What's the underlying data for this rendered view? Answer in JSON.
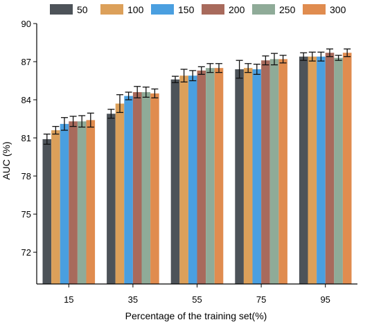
{
  "chart_data": {
    "type": "bar",
    "xlabel": "Percentage of the training set(%)",
    "ylabel": "AUC (%)",
    "ylim": [
      69.5,
      90
    ],
    "yticks": [
      72,
      75,
      78,
      81,
      84,
      87,
      90
    ],
    "grid": false,
    "legend_position": "top",
    "categories": [
      "15",
      "35",
      "55",
      "75",
      "95"
    ],
    "series": [
      {
        "name": "50",
        "color": "#4d5359",
        "values": [
          80.9,
          82.9,
          85.6,
          86.4,
          87.4
        ],
        "errors": [
          0.4,
          0.35,
          0.25,
          0.7,
          0.3
        ]
      },
      {
        "name": "100",
        "color": "#dca05a",
        "values": [
          81.6,
          83.7,
          85.9,
          86.5,
          87.4
        ],
        "errors": [
          0.3,
          0.7,
          0.5,
          0.35,
          0.35
        ]
      },
      {
        "name": "150",
        "color": "#4a9fe0",
        "values": [
          82.1,
          84.3,
          85.9,
          86.4,
          87.4
        ],
        "errors": [
          0.5,
          0.3,
          0.4,
          0.4,
          0.35
        ]
      },
      {
        "name": "200",
        "color": "#a86a5c",
        "values": [
          82.3,
          84.6,
          86.3,
          87.1,
          87.7
        ],
        "errors": [
          0.4,
          0.45,
          0.3,
          0.35,
          0.3
        ]
      },
      {
        "name": "250",
        "color": "#8fab98",
        "values": [
          82.3,
          84.6,
          86.5,
          87.2,
          87.3
        ],
        "errors": [
          0.45,
          0.4,
          0.35,
          0.45,
          0.2
        ]
      },
      {
        "name": "300",
        "color": "#e08c4f",
        "values": [
          82.4,
          84.5,
          86.5,
          87.2,
          87.7
        ],
        "errors": [
          0.55,
          0.35,
          0.35,
          0.3,
          0.3
        ]
      }
    ]
  }
}
